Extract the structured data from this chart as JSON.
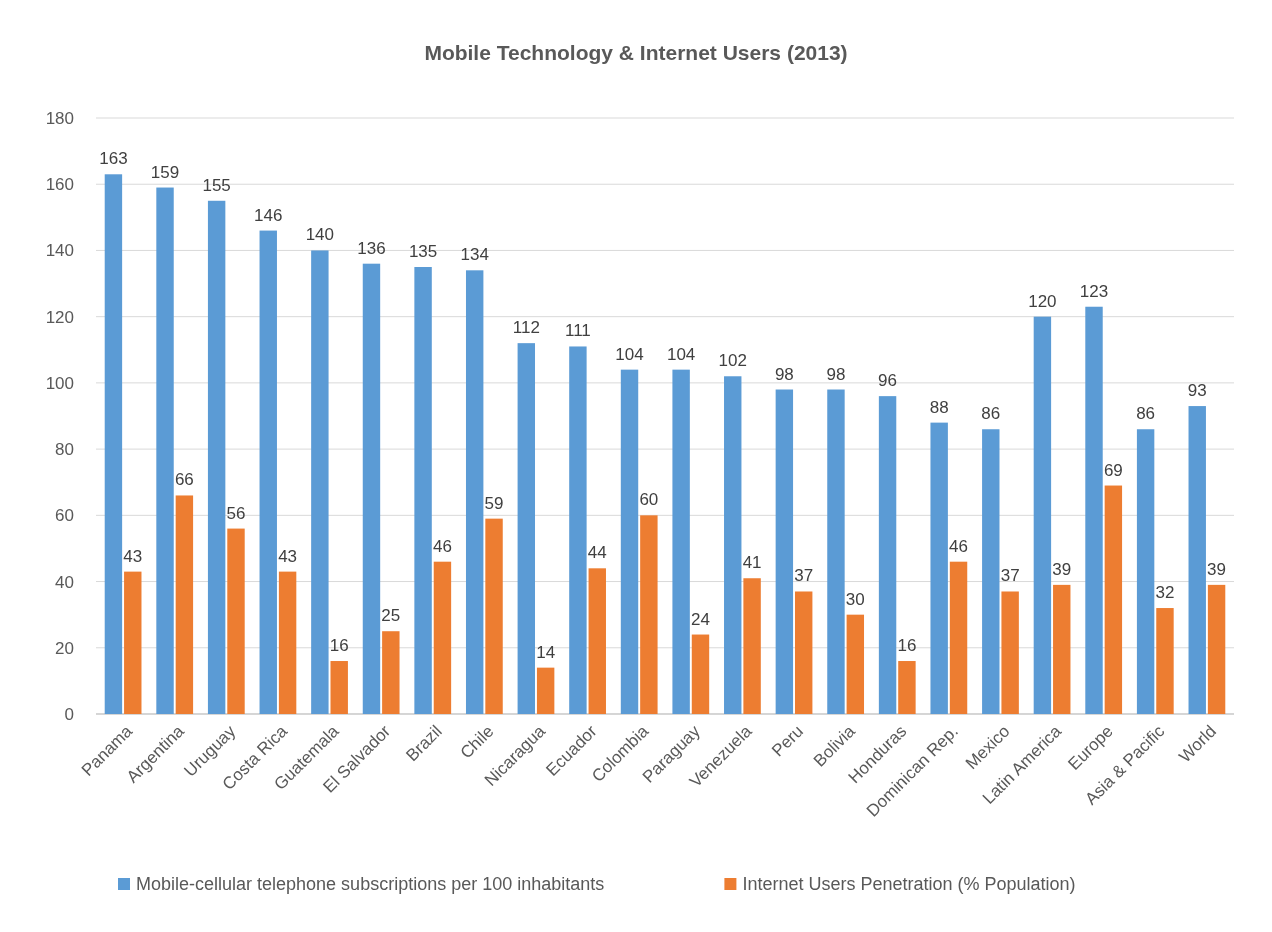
{
  "chart_data": {
    "type": "bar",
    "title": "Mobile Technology & Internet Users (2013)",
    "categories": [
      "Panama",
      "Argentina",
      "Uruguay",
      "Costa Rica",
      "Guatemala",
      "El Salvador",
      "Brazil",
      "Chile",
      "Nicaragua",
      "Ecuador",
      "Colombia",
      "Paraguay",
      "Venezuela",
      "Peru",
      "Bolivia",
      "Honduras",
      "Dominican Rep.",
      "Mexico",
      "Latin America",
      "Europe",
      "Asia & Pacific",
      "World"
    ],
    "series": [
      {
        "name": "Mobile-cellular telephone subscriptions per 100 inhabitants",
        "color": "#5b9bd5",
        "values": [
          163,
          159,
          155,
          146,
          140,
          136,
          135,
          134,
          112,
          111,
          104,
          104,
          102,
          98,
          98,
          96,
          88,
          86,
          120,
          123,
          86,
          93
        ]
      },
      {
        "name": "Internet Users Penetration (% Population)",
        "color": "#ed7d31",
        "values": [
          43,
          66,
          56,
          43,
          16,
          25,
          46,
          59,
          14,
          44,
          60,
          24,
          41,
          37,
          30,
          16,
          46,
          37,
          39,
          69,
          32,
          39
        ]
      }
    ],
    "ylim": [
      0,
      180
    ],
    "yticks": [
      0,
      20,
      40,
      60,
      80,
      100,
      120,
      140,
      160,
      180
    ],
    "grid": "y",
    "legend": "bottom",
    "data_labels": true
  }
}
